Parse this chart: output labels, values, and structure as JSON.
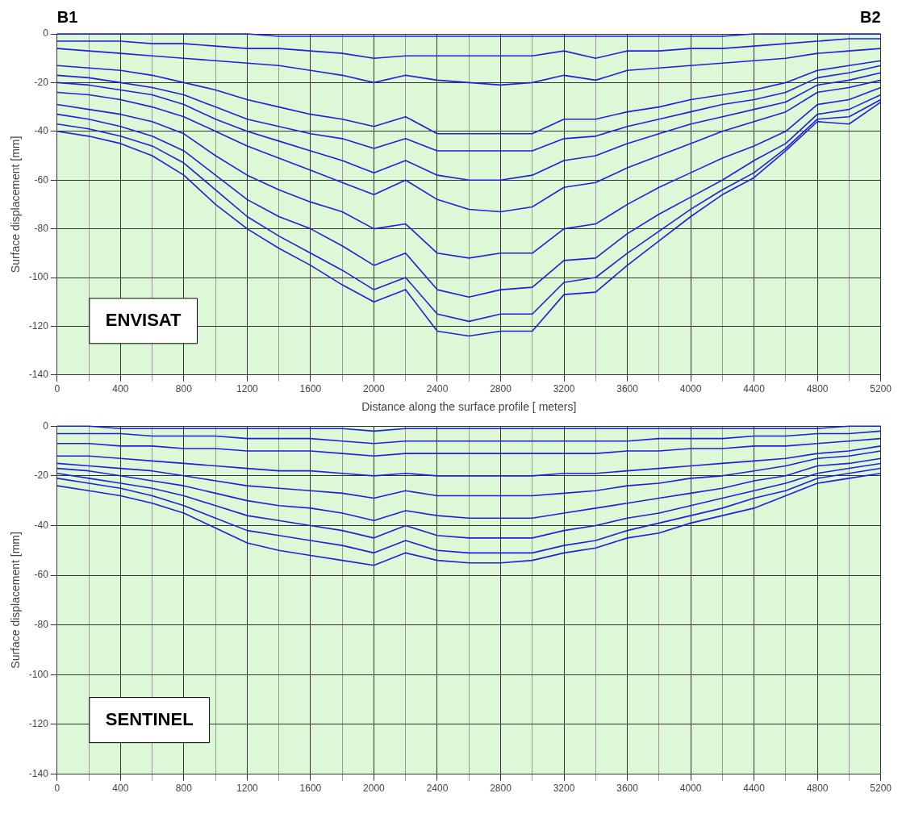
{
  "chart_data": [
    {
      "type": "line",
      "xlabel": "Distance along the surface profile [ meters]",
      "ylabel": "Surface displacement [mm]",
      "annotations": [
        "B1",
        "B2",
        "ENVISAT"
      ],
      "x": [
        0,
        200,
        400,
        600,
        800,
        1000,
        1200,
        1400,
        1600,
        1800,
        2000,
        2200,
        2400,
        2600,
        2800,
        3000,
        3200,
        3400,
        3600,
        3800,
        4000,
        4200,
        4400,
        4600,
        4800,
        5000,
        5200
      ],
      "xlim": [
        0,
        5200
      ],
      "xticks": [
        0,
        {
          "value": 200,
          "label": null
        },
        400,
        {
          "value": 600,
          "label": null
        },
        800,
        {
          "value": 1000,
          "label": null
        },
        1200,
        {
          "value": 1400,
          "label": null
        },
        1600,
        {
          "value": 1800,
          "label": null
        },
        2000,
        {
          "value": 2200,
          "label": null
        },
        2400,
        {
          "value": 2600,
          "label": null
        },
        2800,
        {
          "value": 3000,
          "label": null
        },
        3200,
        {
          "value": 3400,
          "label": null
        },
        3600,
        {
          "value": 3800,
          "label": null
        },
        4000,
        {
          "value": 4200,
          "label": null
        },
        4400,
        {
          "value": 4600,
          "label": null
        },
        4800,
        {
          "value": 5000,
          "label": null
        },
        5200
      ],
      "ylim": [
        -140,
        0
      ],
      "yticks": [
        -140,
        -120,
        -100,
        -80,
        -60,
        -40,
        -20,
        0
      ],
      "grid": true,
      "marker": "none",
      "line_style": "solid",
      "series": [
        {
          "color": "#1f1fe0",
          "values": [
            0,
            0,
            0,
            0,
            0,
            0,
            0,
            -1,
            -1,
            -1,
            -1,
            -1,
            -1,
            -1,
            -1,
            -1,
            -1,
            -1,
            -1,
            -1,
            -1,
            -1,
            0,
            0,
            0,
            0,
            0
          ]
        },
        {
          "color": "#1f1fe0",
          "values": [
            -3,
            -3,
            -3,
            -4,
            -4,
            -5,
            -6,
            -6,
            -7,
            -8,
            -10,
            -9,
            -9,
            -9,
            -9,
            -9,
            -7,
            -10,
            -7,
            -7,
            -6,
            -6,
            -5,
            -4,
            -3,
            -2,
            -2
          ]
        },
        {
          "color": "#1f1fe0",
          "values": [
            -6,
            -7,
            -8,
            -9,
            -10,
            -11,
            -12,
            -13,
            -15,
            -17,
            -20,
            -17,
            -19,
            -20,
            -21,
            -20,
            -17,
            -19,
            -15,
            -14,
            -13,
            -12,
            -11,
            -10,
            -8,
            -7,
            -6
          ]
        },
        {
          "color": "#1f1fe0",
          "values": [
            -13,
            -14,
            -15,
            -17,
            -20,
            -23,
            -27,
            -30,
            -33,
            -35,
            -38,
            -34,
            -41,
            -41,
            -41,
            -41,
            -35,
            -35,
            -32,
            -30,
            -27,
            -25,
            -23,
            -20,
            -15,
            -13,
            -11
          ]
        },
        {
          "color": "#1f1fe0",
          "values": [
            -17,
            -18,
            -20,
            -22,
            -25,
            -30,
            -35,
            -38,
            -41,
            -43,
            -47,
            -43,
            -48,
            -48,
            -48,
            -48,
            -43,
            -42,
            -38,
            -35,
            -32,
            -29,
            -27,
            -24,
            -18,
            -16,
            -13
          ]
        },
        {
          "color": "#1f1fe0",
          "values": [
            -20,
            -21,
            -23,
            -25,
            -29,
            -35,
            -40,
            -44,
            -48,
            -52,
            -57,
            -52,
            -58,
            -60,
            -60,
            -58,
            -52,
            -50,
            -45,
            -41,
            -37,
            -34,
            -31,
            -28,
            -21,
            -19,
            -16
          ]
        },
        {
          "color": "#1f1fe0",
          "values": [
            -24,
            -25,
            -27,
            -30,
            -34,
            -40,
            -46,
            -51,
            -56,
            -61,
            -66,
            -60,
            -68,
            -72,
            -73,
            -71,
            -63,
            -61,
            -55,
            -50,
            -45,
            -40,
            -36,
            -32,
            -24,
            -22,
            -19
          ]
        },
        {
          "color": "#1f1fe0",
          "values": [
            -29,
            -31,
            -33,
            -36,
            -41,
            -50,
            -58,
            -64,
            -69,
            -73,
            -80,
            -78,
            -90,
            -92,
            -90,
            -90,
            -80,
            -78,
            -70,
            -63,
            -57,
            -51,
            -46,
            -40,
            -29,
            -27,
            -22
          ]
        },
        {
          "color": "#1f1fe0",
          "values": [
            -33,
            -35,
            -38,
            -42,
            -48,
            -58,
            -68,
            -75,
            -80,
            -87,
            -95,
            -90,
            -105,
            -108,
            -105,
            -104,
            -93,
            -92,
            -82,
            -74,
            -67,
            -60,
            -52,
            -45,
            -33,
            -31,
            -25
          ]
        },
        {
          "color": "#1f1fe0",
          "values": [
            -37,
            -39,
            -42,
            -46,
            -53,
            -64,
            -75,
            -83,
            -90,
            -97,
            -105,
            -100,
            -115,
            -118,
            -115,
            -115,
            -102,
            -100,
            -90,
            -81,
            -72,
            -64,
            -57,
            -47,
            -35,
            -34,
            -27
          ]
        },
        {
          "color": "#1f1fe0",
          "values": [
            -40,
            -42,
            -45,
            -50,
            -58,
            -70,
            -80,
            -88,
            -95,
            -103,
            -110,
            -105,
            -122,
            -124,
            -122,
            -122,
            -107,
            -106,
            -95,
            -85,
            -75,
            -66,
            -59,
            -48,
            -36,
            -37,
            -28
          ]
        }
      ]
    },
    {
      "type": "line",
      "ylabel": "Surface displacement [mm]",
      "annotations": [
        "SENTINEL"
      ],
      "x": [
        0,
        200,
        400,
        600,
        800,
        1000,
        1200,
        1400,
        1600,
        1800,
        2000,
        2200,
        2400,
        2600,
        2800,
        3000,
        3200,
        3400,
        3600,
        3800,
        4000,
        4200,
        4400,
        4600,
        4800,
        5000,
        5200
      ],
      "xlim": [
        0,
        5200
      ],
      "xticks": [
        0,
        {
          "value": 200,
          "label": null
        },
        400,
        {
          "value": 600,
          "label": null
        },
        800,
        {
          "value": 1000,
          "label": null
        },
        1200,
        {
          "value": 1400,
          "label": null
        },
        1600,
        {
          "value": 1800,
          "label": null
        },
        2000,
        {
          "value": 2200,
          "label": null
        },
        2400,
        {
          "value": 2600,
          "label": null
        },
        2800,
        {
          "value": 3000,
          "label": null
        },
        3200,
        {
          "value": 3400,
          "label": null
        },
        3600,
        {
          "value": 3800,
          "label": null
        },
        4000,
        {
          "value": 4200,
          "label": null
        },
        4400,
        {
          "value": 4600,
          "label": null
        },
        4800,
        {
          "value": 5000,
          "label": null
        },
        5200
      ],
      "ylim": [
        -140,
        0
      ],
      "yticks": [
        -140,
        -120,
        -100,
        -80,
        -60,
        -40,
        -20,
        0
      ],
      "grid": true,
      "marker": "none",
      "line_style": "solid",
      "series": [
        {
          "color": "#1f1fe0",
          "values": [
            0,
            0,
            -1,
            -1,
            -1,
            -1,
            -1,
            -1,
            -1,
            -1,
            -2,
            -1,
            -1,
            -1,
            -1,
            -1,
            -1,
            -1,
            -1,
            -1,
            -1,
            -1,
            -1,
            -1,
            -1,
            0,
            0
          ]
        },
        {
          "color": "#1f1fe0",
          "values": [
            -3,
            -3,
            -3,
            -4,
            -4,
            -4,
            -5,
            -5,
            -5,
            -6,
            -7,
            -6,
            -6,
            -6,
            -6,
            -6,
            -6,
            -6,
            -6,
            -5,
            -5,
            -5,
            -4,
            -4,
            -3,
            -3,
            -2
          ]
        },
        {
          "color": "#1f1fe0",
          "values": [
            -7,
            -7,
            -8,
            -8,
            -9,
            -9,
            -10,
            -10,
            -10,
            -11,
            -12,
            -11,
            -11,
            -11,
            -11,
            -11,
            -11,
            -11,
            -10,
            -10,
            -9,
            -9,
            -8,
            -8,
            -7,
            -6,
            -5
          ]
        },
        {
          "color": "#1f1fe0",
          "values": [
            -12,
            -12,
            -13,
            -14,
            -15,
            -16,
            -17,
            -18,
            -18,
            -19,
            -20,
            -19,
            -20,
            -20,
            -20,
            -20,
            -19,
            -19,
            -18,
            -17,
            -16,
            -15,
            -14,
            -13,
            -11,
            -10,
            -8
          ]
        },
        {
          "color": "#1f1fe0",
          "values": [
            -15,
            -16,
            -17,
            -18,
            -20,
            -22,
            -24,
            -25,
            -26,
            -27,
            -29,
            -26,
            -28,
            -28,
            -28,
            -28,
            -27,
            -26,
            -24,
            -23,
            -21,
            -20,
            -18,
            -16,
            -13,
            -12,
            -10
          ]
        },
        {
          "color": "#1f1fe0",
          "values": [
            -17,
            -18,
            -20,
            -22,
            -24,
            -27,
            -30,
            -32,
            -33,
            -35,
            -38,
            -34,
            -36,
            -37,
            -37,
            -37,
            -35,
            -33,
            -31,
            -29,
            -27,
            -25,
            -22,
            -20,
            -16,
            -15,
            -13
          ]
        },
        {
          "color": "#1f1fe0",
          "values": [
            -19,
            -21,
            -23,
            -25,
            -28,
            -32,
            -36,
            -38,
            -40,
            -42,
            -45,
            -40,
            -44,
            -45,
            -45,
            -45,
            -42,
            -40,
            -37,
            -35,
            -32,
            -29,
            -26,
            -23,
            -19,
            -17,
            -15
          ]
        },
        {
          "color": "#1f1fe0",
          "values": [
            -21,
            -23,
            -25,
            -28,
            -32,
            -37,
            -42,
            -44,
            -46,
            -48,
            -51,
            -46,
            -50,
            -51,
            -51,
            -51,
            -48,
            -46,
            -42,
            -39,
            -36,
            -33,
            -29,
            -26,
            -21,
            -19,
            -17
          ]
        },
        {
          "color": "#1f1fe0",
          "values": [
            -24,
            -26,
            -28,
            -31,
            -35,
            -41,
            -47,
            -50,
            -52,
            -54,
            -56,
            -51,
            -54,
            -55,
            -55,
            -54,
            -51,
            -49,
            -45,
            -43,
            -39,
            -36,
            -33,
            -28,
            -23,
            -21,
            -19
          ]
        }
      ]
    }
  ]
}
